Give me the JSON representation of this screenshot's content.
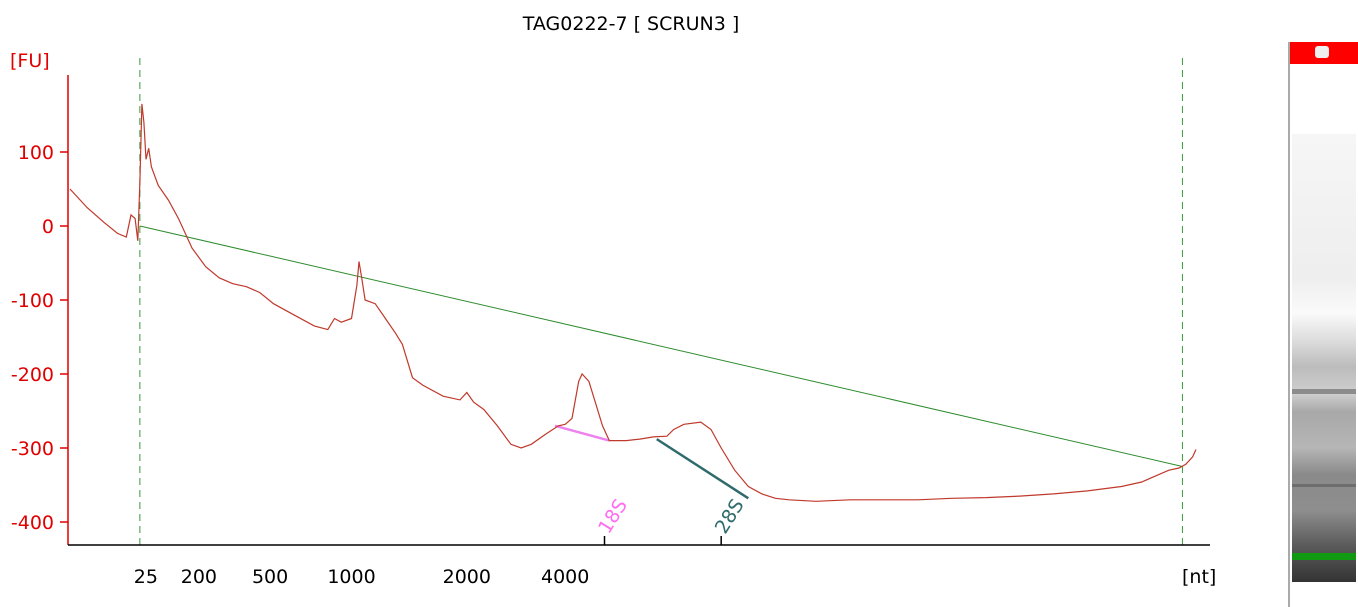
{
  "chart_data": {
    "type": "line",
    "title": "TAG0222-7  [ SCRUN3 ]",
    "ylabel": "[FU]",
    "xlabel": "[nt]",
    "ylim": [
      -430,
      210
    ],
    "y_ticks": [
      100,
      0,
      -100,
      -200,
      -300,
      -400
    ],
    "x_tick_labels": [
      "25",
      "200",
      "500",
      "1000",
      "2000",
      "4000"
    ],
    "x_scale": "bioanalyzer ladder (non-linear)",
    "grid": false,
    "series": [
      {
        "color": "#c0392b",
        "points": [
          [
            0.0,
            50
          ],
          [
            2.5,
            25
          ],
          [
            5.0,
            5
          ],
          [
            7.0,
            -10
          ],
          [
            8.3,
            -15
          ],
          [
            9.0,
            15
          ],
          [
            9.6,
            10
          ],
          [
            10.0,
            -20
          ],
          [
            10.3,
            60
          ],
          [
            10.6,
            165
          ],
          [
            10.9,
            140
          ],
          [
            11.2,
            90
          ],
          [
            11.6,
            105
          ],
          [
            12.0,
            80
          ],
          [
            13.0,
            55
          ],
          [
            14.5,
            35
          ],
          [
            16.0,
            10
          ],
          [
            18.0,
            -30
          ],
          [
            20.0,
            -55
          ],
          [
            22.0,
            -70
          ],
          [
            24.0,
            -78
          ],
          [
            26.0,
            -82
          ],
          [
            28.0,
            -90
          ],
          [
            30.0,
            -105
          ],
          [
            33.0,
            -120
          ],
          [
            36.0,
            -135
          ],
          [
            38.0,
            -140
          ],
          [
            39.0,
            -125
          ],
          [
            40.0,
            -130
          ],
          [
            41.5,
            -125
          ],
          [
            42.3,
            -80
          ],
          [
            42.6,
            -48
          ],
          [
            43.0,
            -70
          ],
          [
            43.5,
            -100
          ],
          [
            45.0,
            -105
          ],
          [
            46.5,
            -125
          ],
          [
            48.0,
            -145
          ],
          [
            49.0,
            -160
          ],
          [
            50.5,
            -205
          ],
          [
            52.0,
            -215
          ],
          [
            55.0,
            -230
          ],
          [
            57.5,
            -235
          ],
          [
            58.5,
            -225
          ],
          [
            59.5,
            -238
          ],
          [
            61.0,
            -248
          ],
          [
            63.0,
            -270
          ],
          [
            65.0,
            -295
          ],
          [
            66.5,
            -300
          ],
          [
            68.0,
            -295
          ],
          [
            70.0,
            -282
          ],
          [
            72.0,
            -270
          ],
          [
            73.0,
            -268
          ],
          [
            74.0,
            -260
          ],
          [
            75.0,
            -210
          ],
          [
            75.5,
            -200
          ],
          [
            76.5,
            -210
          ],
          [
            77.5,
            -240
          ],
          [
            78.5,
            -270
          ],
          [
            79.5,
            -290
          ],
          [
            82.0,
            -290
          ],
          [
            84.0,
            -288
          ],
          [
            86.0,
            -285
          ],
          [
            88.0,
            -284
          ],
          [
            89.0,
            -275
          ],
          [
            90.5,
            -268
          ],
          [
            93.0,
            -265
          ],
          [
            94.5,
            -275
          ],
          [
            96.0,
            -300
          ],
          [
            98.0,
            -330
          ],
          [
            100.0,
            -352
          ],
          [
            102.0,
            -362
          ],
          [
            104.0,
            -368
          ],
          [
            106.0,
            -370
          ],
          [
            110.0,
            -372
          ],
          [
            115.0,
            -370
          ],
          [
            120.0,
            -370
          ],
          [
            125.0,
            -370
          ],
          [
            130.0,
            -368
          ],
          [
            135.0,
            -367
          ],
          [
            140.0,
            -365
          ],
          [
            145.0,
            -362
          ],
          [
            150.0,
            -358
          ],
          [
            155.0,
            -352
          ],
          [
            158.0,
            -346
          ],
          [
            160.0,
            -338
          ],
          [
            162.0,
            -330
          ],
          [
            163.5,
            -327
          ],
          [
            164.5,
            -322
          ],
          [
            165.5,
            -312
          ],
          [
            166.0,
            -302
          ]
        ]
      }
    ],
    "baseline": {
      "color": "#2e8b2e",
      "from": [
        10.3,
        0
      ],
      "to": [
        164.0,
        -325
      ]
    },
    "window_markers": [
      10.3,
      164.0
    ],
    "peaks": [
      {
        "label": "18S",
        "color": "#ee82ee",
        "text_color": "#ff6ef2",
        "x": 70.5,
        "from": [
          71.5,
          -270
        ],
        "to": [
          79.5,
          -290
        ],
        "tick_x": 78.8
      },
      {
        "label": "28S",
        "color": "#2f6b6b",
        "text_color": "#2f6b6b",
        "x": 85.0,
        "from": [
          86.5,
          -288
        ],
        "to": [
          100.0,
          -368
        ],
        "tick_x": 96.0
      }
    ]
  },
  "gel": {
    "marker_color": "#ff0000",
    "lower_marker_color": "#119911"
  }
}
